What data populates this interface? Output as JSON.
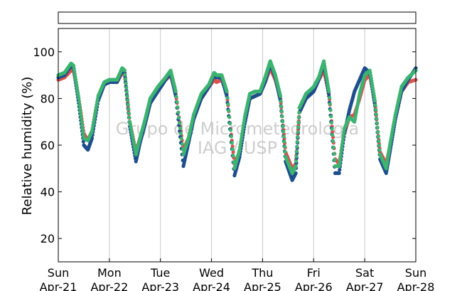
{
  "chart_data": {
    "type": "scatter",
    "ylabel": "Relative humidity (%)",
    "xlabel": "",
    "ylim": [
      10,
      110
    ],
    "yticks": [
      20,
      40,
      60,
      80,
      100
    ],
    "xlim": [
      0,
      7
    ],
    "x_unit": "days",
    "xticks": [
      {
        "day": "Sun",
        "date": "Apr-21"
      },
      {
        "day": "Mon",
        "date": "Apr-22"
      },
      {
        "day": "Tue",
        "date": "Apr-23"
      },
      {
        "day": "Wed",
        "date": "Apr-24"
      },
      {
        "day": "Thu",
        "date": "Apr-25"
      },
      {
        "day": "Fri",
        "date": "Apr-26"
      },
      {
        "day": "Sat",
        "date": "Apr-27"
      },
      {
        "day": "Sun",
        "date": "Apr-28"
      }
    ],
    "grid": "vertical",
    "legend": "empty box above plot",
    "watermark": [
      "Grupo de Micrometeorologia",
      "IAG / USP"
    ],
    "colors": {
      "series_a": "#d9534f",
      "series_b": "#1f4e8c",
      "series_c": "#3cb371"
    },
    "series": [
      {
        "color": "#d9534f",
        "points": [
          [
            0.0,
            88
          ],
          [
            0.12,
            89
          ],
          [
            0.25,
            92
          ],
          [
            0.3,
            92
          ],
          [
            0.4,
            80
          ],
          [
            0.5,
            65
          ],
          [
            0.58,
            62
          ],
          [
            0.66,
            66
          ],
          [
            0.78,
            80
          ],
          [
            0.9,
            86
          ],
          [
            1.0,
            87
          ],
          [
            1.15,
            87
          ],
          [
            1.25,
            91
          ],
          [
            1.3,
            90
          ],
          [
            1.4,
            70
          ],
          [
            1.52,
            57
          ],
          [
            1.6,
            63
          ],
          [
            1.7,
            70
          ],
          [
            1.8,
            78
          ],
          [
            1.95,
            84
          ],
          [
            2.1,
            88
          ],
          [
            2.2,
            90
          ],
          [
            2.3,
            82
          ],
          [
            2.45,
            58
          ],
          [
            2.55,
            63
          ],
          [
            2.65,
            72
          ],
          [
            2.8,
            80
          ],
          [
            2.95,
            85
          ],
          [
            3.05,
            88
          ],
          [
            3.1,
            87
          ],
          [
            3.2,
            88
          ],
          [
            3.3,
            82
          ],
          [
            3.45,
            52
          ],
          [
            3.55,
            57
          ],
          [
            3.65,
            70
          ],
          [
            3.75,
            80
          ],
          [
            3.85,
            81
          ],
          [
            3.95,
            82
          ],
          [
            4.05,
            87
          ],
          [
            4.15,
            93
          ],
          [
            4.25,
            88
          ],
          [
            4.35,
            80
          ],
          [
            4.45,
            57
          ],
          [
            4.58,
            50
          ],
          [
            4.65,
            52
          ],
          [
            4.72,
            74
          ],
          [
            4.85,
            80
          ],
          [
            5.0,
            84
          ],
          [
            5.1,
            88
          ],
          [
            5.2,
            92
          ],
          [
            5.3,
            82
          ],
          [
            5.42,
            54
          ],
          [
            5.5,
            52
          ],
          [
            5.6,
            65
          ],
          [
            5.7,
            72
          ],
          [
            5.8,
            73
          ],
          [
            5.9,
            80
          ],
          [
            6.0,
            88
          ],
          [
            6.1,
            90
          ],
          [
            6.2,
            78
          ],
          [
            6.3,
            57
          ],
          [
            6.42,
            52
          ],
          [
            6.5,
            60
          ],
          [
            6.6,
            72
          ],
          [
            6.72,
            83
          ],
          [
            6.85,
            87
          ],
          [
            7.0,
            88
          ]
        ]
      },
      {
        "color": "#1f4e8c",
        "points": [
          [
            0.0,
            89
          ],
          [
            0.12,
            90
          ],
          [
            0.25,
            94
          ],
          [
            0.3,
            93
          ],
          [
            0.4,
            78
          ],
          [
            0.5,
            60
          ],
          [
            0.58,
            58
          ],
          [
            0.66,
            63
          ],
          [
            0.78,
            79
          ],
          [
            0.9,
            86
          ],
          [
            1.0,
            87
          ],
          [
            1.15,
            87
          ],
          [
            1.25,
            92
          ],
          [
            1.3,
            91
          ],
          [
            1.4,
            68
          ],
          [
            1.52,
            53
          ],
          [
            1.6,
            61
          ],
          [
            1.7,
            69
          ],
          [
            1.8,
            78
          ],
          [
            1.95,
            83
          ],
          [
            2.1,
            88
          ],
          [
            2.2,
            91
          ],
          [
            2.3,
            81
          ],
          [
            2.45,
            51
          ],
          [
            2.55,
            61
          ],
          [
            2.65,
            71
          ],
          [
            2.8,
            80
          ],
          [
            2.95,
            85
          ],
          [
            3.05,
            90
          ],
          [
            3.1,
            89
          ],
          [
            3.2,
            89
          ],
          [
            3.3,
            81
          ],
          [
            3.45,
            47
          ],
          [
            3.55,
            55
          ],
          [
            3.65,
            69
          ],
          [
            3.75,
            80
          ],
          [
            3.85,
            81
          ],
          [
            3.95,
            82
          ],
          [
            4.05,
            87
          ],
          [
            4.15,
            95
          ],
          [
            4.25,
            89
          ],
          [
            4.35,
            79
          ],
          [
            4.45,
            53
          ],
          [
            4.58,
            45
          ],
          [
            4.65,
            48
          ],
          [
            4.72,
            74
          ],
          [
            4.85,
            80
          ],
          [
            5.0,
            83
          ],
          [
            5.1,
            88
          ],
          [
            5.2,
            95
          ],
          [
            5.3,
            81
          ],
          [
            5.42,
            48
          ],
          [
            5.5,
            48
          ],
          [
            5.6,
            65
          ],
          [
            5.7,
            75
          ],
          [
            5.8,
            83
          ],
          [
            5.9,
            88
          ],
          [
            6.0,
            93
          ],
          [
            6.1,
            91
          ],
          [
            6.2,
            77
          ],
          [
            6.3,
            54
          ],
          [
            6.42,
            48
          ],
          [
            6.5,
            58
          ],
          [
            6.6,
            71
          ],
          [
            6.72,
            83
          ],
          [
            6.85,
            88
          ],
          [
            7.0,
            93
          ]
        ]
      },
      {
        "color": "#3cb371",
        "points": [
          [
            0.0,
            90
          ],
          [
            0.12,
            91
          ],
          [
            0.25,
            95
          ],
          [
            0.3,
            94
          ],
          [
            0.4,
            80
          ],
          [
            0.5,
            63
          ],
          [
            0.58,
            62
          ],
          [
            0.66,
            66
          ],
          [
            0.78,
            81
          ],
          [
            0.9,
            87
          ],
          [
            1.0,
            88
          ],
          [
            1.15,
            88
          ],
          [
            1.25,
            93
          ],
          [
            1.3,
            92
          ],
          [
            1.4,
            70
          ],
          [
            1.52,
            56
          ],
          [
            1.6,
            63
          ],
          [
            1.7,
            71
          ],
          [
            1.8,
            80
          ],
          [
            1.95,
            85
          ],
          [
            2.1,
            89
          ],
          [
            2.2,
            92
          ],
          [
            2.3,
            83
          ],
          [
            2.45,
            56
          ],
          [
            2.55,
            63
          ],
          [
            2.65,
            73
          ],
          [
            2.8,
            82
          ],
          [
            2.95,
            86
          ],
          [
            3.05,
            91
          ],
          [
            3.1,
            90
          ],
          [
            3.2,
            90
          ],
          [
            3.3,
            83
          ],
          [
            3.45,
            50
          ],
          [
            3.55,
            58
          ],
          [
            3.65,
            72
          ],
          [
            3.75,
            82
          ],
          [
            3.85,
            83
          ],
          [
            3.95,
            83
          ],
          [
            4.05,
            89
          ],
          [
            4.15,
            96
          ],
          [
            4.25,
            90
          ],
          [
            4.35,
            81
          ],
          [
            4.45,
            55
          ],
          [
            4.58,
            48
          ],
          [
            4.65,
            51
          ],
          [
            4.72,
            76
          ],
          [
            4.85,
            82
          ],
          [
            5.0,
            85
          ],
          [
            5.1,
            89
          ],
          [
            5.2,
            96
          ],
          [
            5.3,
            83
          ],
          [
            5.42,
            51
          ],
          [
            5.5,
            51
          ],
          [
            5.6,
            67
          ],
          [
            5.7,
            72
          ],
          [
            5.8,
            70
          ],
          [
            5.9,
            82
          ],
          [
            6.0,
            90
          ],
          [
            6.1,
            92
          ],
          [
            6.2,
            79
          ],
          [
            6.3,
            56
          ],
          [
            6.42,
            50
          ],
          [
            6.5,
            61
          ],
          [
            6.6,
            73
          ],
          [
            6.72,
            85
          ],
          [
            6.85,
            89
          ],
          [
            7.0,
            92
          ]
        ]
      }
    ]
  }
}
